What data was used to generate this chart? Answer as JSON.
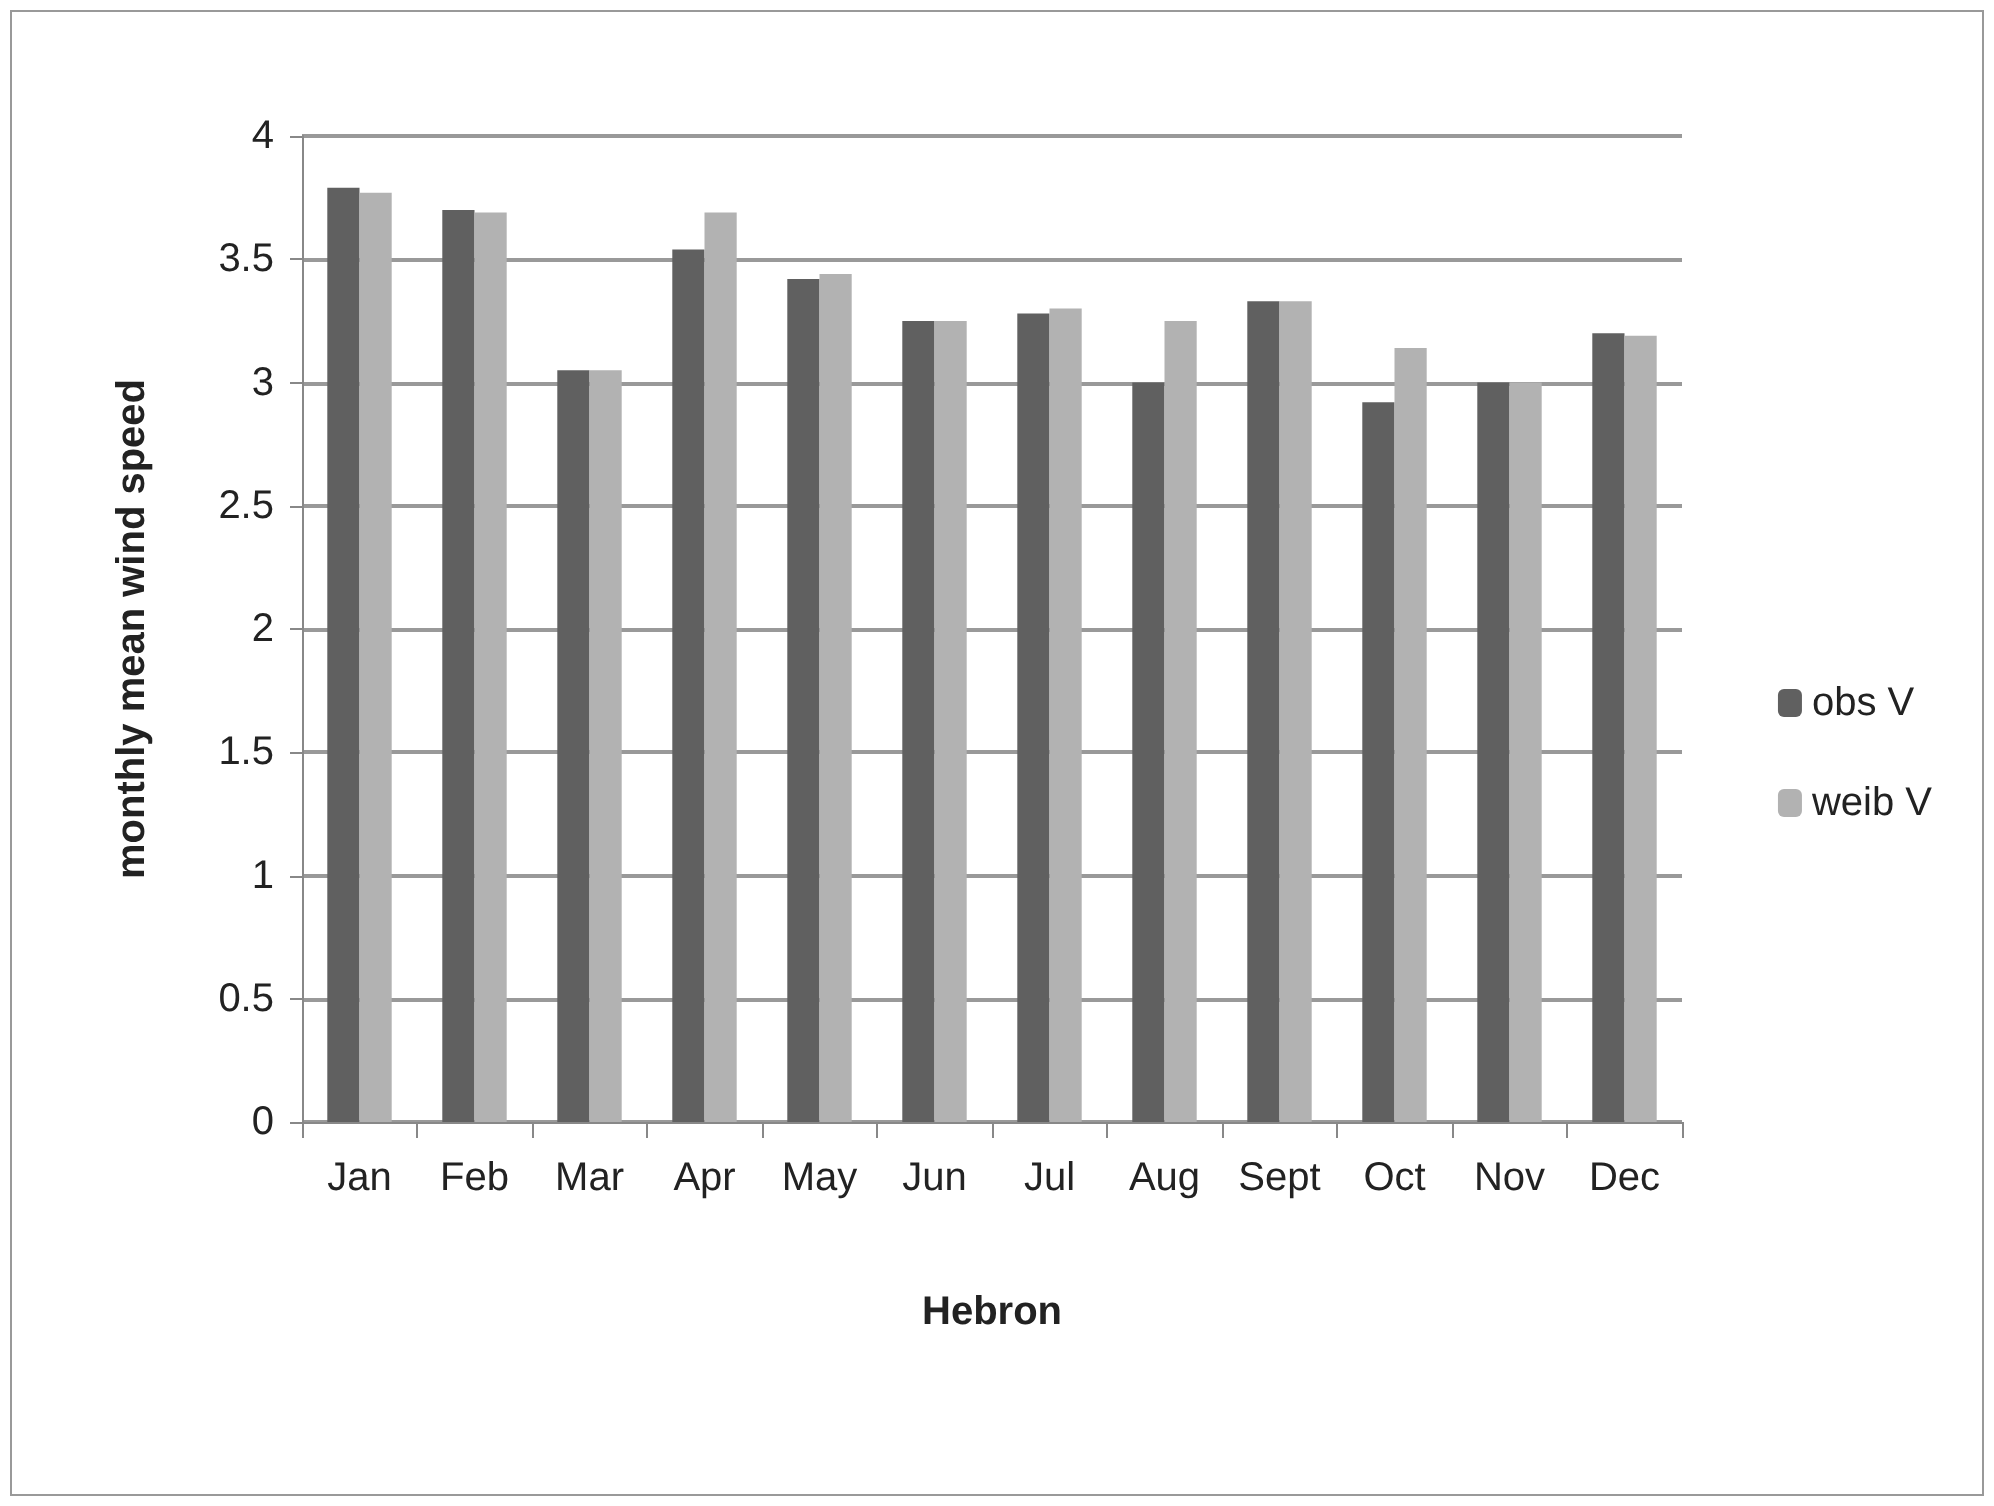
{
  "chart_data": {
    "type": "bar",
    "xlabel": "Hebron",
    "ylabel": "monthly mean wind speed",
    "categories": [
      "Jan",
      "Feb",
      "Mar",
      "Apr",
      "May",
      "Jun",
      "Jul",
      "Aug",
      "Sept",
      "Oct",
      "Nov",
      "Dec"
    ],
    "series": [
      {
        "name": "obs V",
        "color": "#606060",
        "values": [
          3.79,
          3.7,
          3.05,
          3.54,
          3.42,
          3.25,
          3.28,
          3.0,
          3.33,
          2.92,
          3.0,
          3.2
        ]
      },
      {
        "name": "weib V",
        "color": "#b2b2b2",
        "values": [
          3.77,
          3.69,
          3.05,
          3.69,
          3.44,
          3.25,
          3.3,
          3.25,
          3.33,
          3.14,
          3.0,
          3.19
        ]
      }
    ],
    "ylim": [
      0,
      4
    ],
    "yticks": [
      0,
      0.5,
      1,
      1.5,
      2,
      2.5,
      3,
      3.5,
      4
    ],
    "grid": "y",
    "legend": "right"
  }
}
